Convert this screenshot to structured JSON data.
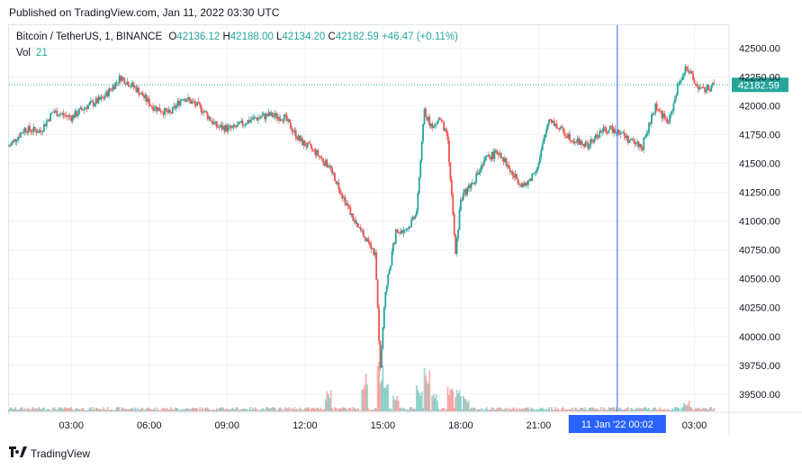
{
  "published": "Published on TradingView.com, Jan 11, 2022 03:30 UTC",
  "legend": {
    "symbol": "Bitcoin / TetherUS, 1, BINANCE",
    "o_label": "O",
    "o": "42136.12",
    "h_label": "H",
    "h": "42188.00",
    "l_label": "L",
    "l": "42134.20",
    "c_label": "C",
    "c": "42182.59",
    "change": "+46.47 (+0.11%)",
    "vol_label": "Vol",
    "vol": "21"
  },
  "colors": {
    "up": "#26a69a",
    "down": "#ef5350",
    "cursor": "#2962ff",
    "price_badge": "#26a69a",
    "grid": "#f0f3fa"
  },
  "last_price": "42182.59",
  "cursor_label": "11 Jan '22   00:02",
  "brand": "TradingView",
  "brand_icon": "tradingview-logo-icon",
  "chart_data": {
    "type": "candlestick",
    "ylim": [
      39350,
      42700
    ],
    "yticks": [
      "42500.00",
      "42250.00",
      "42000.00",
      "41750.00",
      "41500.00",
      "41250.00",
      "41000.00",
      "40750.00",
      "40500.00",
      "40250.00",
      "40000.00",
      "39750.00",
      "39500.00"
    ],
    "ytick_values": [
      42500,
      42250,
      42000,
      41750,
      41500,
      41250,
      41000,
      40750,
      40500,
      40250,
      40000,
      39750,
      39500
    ],
    "xticks": [
      "03:00",
      "06:00",
      "09:00",
      "12:00",
      "15:00",
      "18:00",
      "21:00",
      "03:00"
    ],
    "xtick_hours": [
      3,
      6,
      9,
      12,
      15,
      18,
      21,
      27
    ],
    "xlim_hours": [
      0.6,
      28.3
    ],
    "cursor_hour": 24.03,
    "price_path": [
      [
        0.6,
        41650
      ],
      [
        1.2,
        41800
      ],
      [
        1.8,
        41780
      ],
      [
        2.3,
        41950
      ],
      [
        3.0,
        41900
      ],
      [
        3.6,
        42000
      ],
      [
        4.2,
        42060
      ],
      [
        4.9,
        42250
      ],
      [
        5.5,
        42150
      ],
      [
        6.1,
        42000
      ],
      [
        6.8,
        41930
      ],
      [
        7.3,
        42080
      ],
      [
        8.0,
        41980
      ],
      [
        8.6,
        41820
      ],
      [
        9.2,
        41800
      ],
      [
        9.9,
        41880
      ],
      [
        10.6,
        41920
      ],
      [
        11.2,
        41900
      ],
      [
        11.8,
        41700
      ],
      [
        12.4,
        41600
      ],
      [
        13.0,
        41450
      ],
      [
        13.6,
        41150
      ],
      [
        14.0,
        40950
      ],
      [
        14.5,
        40820
      ],
      [
        14.7,
        40700
      ],
      [
        14.9,
        39750
      ],
      [
        15.1,
        40400
      ],
      [
        15.5,
        40900
      ],
      [
        16.0,
        40950
      ],
      [
        16.3,
        41100
      ],
      [
        16.6,
        41950
      ],
      [
        16.9,
        41800
      ],
      [
        17.2,
        41900
      ],
      [
        17.5,
        41700
      ],
      [
        17.8,
        40700
      ],
      [
        18.0,
        41200
      ],
      [
        18.5,
        41350
      ],
      [
        19.0,
        41550
      ],
      [
        19.5,
        41600
      ],
      [
        20.0,
        41400
      ],
      [
        20.5,
        41300
      ],
      [
        21.0,
        41500
      ],
      [
        21.4,
        41900
      ],
      [
        21.8,
        41800
      ],
      [
        22.4,
        41700
      ],
      [
        22.9,
        41650
      ],
      [
        23.4,
        41780
      ],
      [
        24.0,
        41800
      ],
      [
        24.5,
        41700
      ],
      [
        25.0,
        41650
      ],
      [
        25.5,
        42000
      ],
      [
        26.0,
        41850
      ],
      [
        26.4,
        42200
      ],
      [
        26.7,
        42350
      ],
      [
        27.0,
        42200
      ],
      [
        27.3,
        42130
      ],
      [
        27.8,
        42182
      ]
    ],
    "volume_spikes": [
      [
        12.9,
        0.4
      ],
      [
        14.3,
        0.7
      ],
      [
        14.9,
        1.0
      ],
      [
        15.1,
        0.6
      ],
      [
        15.5,
        0.3
      ],
      [
        16.4,
        0.5
      ],
      [
        16.7,
        1.0
      ],
      [
        17.0,
        0.35
      ],
      [
        17.6,
        0.5
      ],
      [
        17.9,
        0.45
      ],
      [
        18.2,
        0.3
      ],
      [
        26.7,
        0.2
      ]
    ]
  }
}
